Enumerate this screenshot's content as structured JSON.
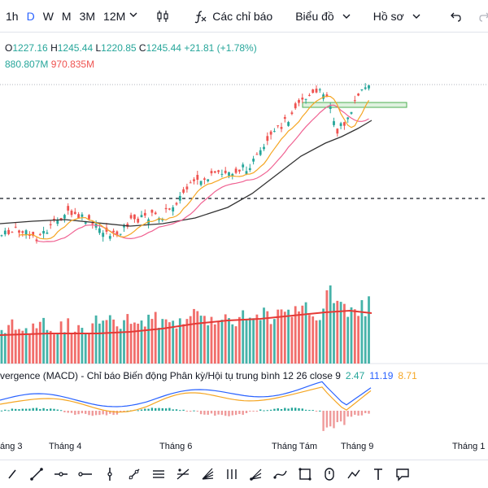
{
  "toolbar": {
    "timeframes": [
      "1h",
      "D",
      "W",
      "M",
      "3M",
      "12M"
    ],
    "active_timeframe": "D",
    "indicators_label": "Các chỉ báo",
    "chart_type_label": "Biểu đồ",
    "profile_label": "Hồ sơ"
  },
  "legend": {
    "open_key": "O",
    "open": "1227.16",
    "high_key": "H",
    "high": "1245.44",
    "low_key": "L",
    "low": "1220.85",
    "close_key": "C",
    "close": "1245.44",
    "change": "+21.81 (+1.78%)",
    "volume_1": "880.807M",
    "volume_2": "970.835M"
  },
  "macd": {
    "label": "vergence (MACD) - Chỉ báo Biến động Phân kỳ/Hội tụ trung bình 12 26 close 9",
    "value_1": "2.47",
    "value_2": "11.19",
    "value_3": "8.71"
  },
  "xaxis": {
    "labels": [
      "áng 3",
      "Tháng 4",
      "Tháng 6",
      "Tháng Tám",
      "Tháng 9",
      "Tháng 1"
    ]
  },
  "colors": {
    "up": "#26a69a",
    "down": "#ef5350",
    "ma_fast": "#f5a623",
    "ma_mid": "#f06292",
    "ma_slow": "#333333",
    "accent": "#2962ff"
  },
  "chart_data": {
    "type": "candlestick",
    "approx_price_range": [
      1000,
      1250
    ],
    "last_candle": {
      "open": 1227.16,
      "high": 1245.44,
      "low": 1220.85,
      "close": 1245.44
    }
  },
  "bottom_tools": [
    "pointer-icon",
    "trend-line-icon",
    "horizontal-line-icon",
    "vertical-line-icon",
    "ray-icon",
    "horizontal-ray-icon",
    "parallel-channel-icon",
    "pitchfork-icon",
    "gann-fan-icon",
    "elliott-wave-icon",
    "fib-fan-icon",
    "curve-icon",
    "rectangle-icon",
    "long-position-icon",
    "path-icon",
    "text-icon",
    "callout-icon"
  ]
}
